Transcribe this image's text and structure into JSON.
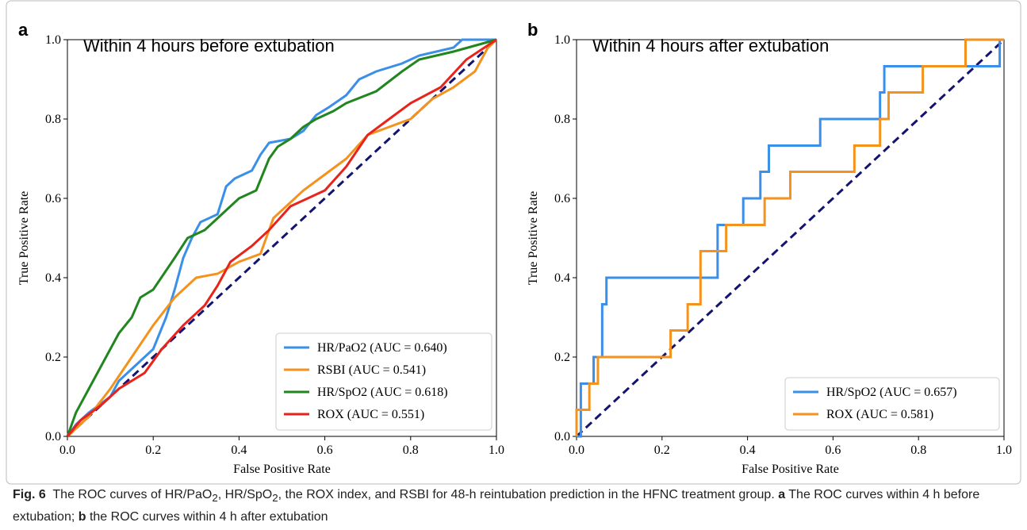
{
  "figure_label": "Fig. 6",
  "caption": [
    "The ROC curves of HR/PaO",
    "2",
    ", HR/SpO",
    "2",
    ", the ROX index, and RSBI for 48-h reintubation prediction in the HFNC treatment group. ",
    "a",
    " The ROC curves within 4 h before extubation; ",
    "b",
    " the ROC curves within 4 h after extubation"
  ],
  "chart_data": [
    {
      "type": "line",
      "panel_label": "a",
      "annotation": "Within 4 hours before extubation",
      "xlabel": "False Positive Rate",
      "ylabel": "True Positive Rate",
      "xlim": [
        0,
        1
      ],
      "ylim": [
        0,
        1
      ],
      "xticks": [
        {
          "value": 0,
          "label": "0.0"
        },
        0.2,
        0.4,
        0.6,
        0.8,
        {
          "value": 1,
          "label": "1.0"
        }
      ],
      "yticks": [
        {
          "value": 0,
          "label": "0.0"
        },
        0.2,
        0.4,
        0.6,
        0.8,
        {
          "value": 1,
          "label": "1.0"
        }
      ],
      "legend": "lower right",
      "series": [
        {
          "name": "HR/PaO2 (AUC = 0.640)",
          "color": "#3a8fe8",
          "x": [
            0,
            0.02,
            0.05,
            0.1,
            0.12,
            0.15,
            0.2,
            0.23,
            0.25,
            0.27,
            0.29,
            0.31,
            0.35,
            0.37,
            0.39,
            0.43,
            0.45,
            0.47,
            0.52,
            0.55,
            0.58,
            0.61,
            0.65,
            0.68,
            0.72,
            0.78,
            0.82,
            0.9,
            0.92,
            1
          ],
          "values": [
            0,
            0.03,
            0.06,
            0.1,
            0.14,
            0.17,
            0.22,
            0.3,
            0.37,
            0.45,
            0.5,
            0.54,
            0.56,
            0.63,
            0.65,
            0.67,
            0.71,
            0.74,
            0.75,
            0.77,
            0.81,
            0.83,
            0.86,
            0.9,
            0.92,
            0.94,
            0.96,
            0.98,
            1,
            1
          ]
        },
        {
          "name": "RSBI (AUC = 0.541)",
          "color": "#f4921e",
          "x": [
            0,
            0.05,
            0.1,
            0.15,
            0.2,
            0.25,
            0.3,
            0.35,
            0.4,
            0.45,
            0.48,
            0.5,
            0.55,
            0.6,
            0.65,
            0.7,
            0.75,
            0.8,
            0.85,
            0.9,
            0.95,
            0.98,
            1
          ],
          "values": [
            0,
            0.05,
            0.12,
            0.2,
            0.28,
            0.35,
            0.4,
            0.41,
            0.44,
            0.46,
            0.55,
            0.57,
            0.62,
            0.66,
            0.7,
            0.76,
            0.78,
            0.8,
            0.85,
            0.88,
            0.92,
            0.98,
            1
          ]
        },
        {
          "name": "HR/SpO2 (AUC = 0.618)",
          "color": "#21861f",
          "x": [
            0,
            0.02,
            0.05,
            0.07,
            0.1,
            0.12,
            0.15,
            0.17,
            0.2,
            0.25,
            0.28,
            0.32,
            0.36,
            0.4,
            0.44,
            0.47,
            0.49,
            0.52,
            0.55,
            0.58,
            0.62,
            0.65,
            0.72,
            0.78,
            0.82,
            0.9,
            1
          ],
          "values": [
            0,
            0.06,
            0.12,
            0.16,
            0.22,
            0.26,
            0.3,
            0.35,
            0.37,
            0.45,
            0.5,
            0.52,
            0.56,
            0.6,
            0.62,
            0.7,
            0.73,
            0.75,
            0.78,
            0.8,
            0.82,
            0.84,
            0.87,
            0.92,
            0.95,
            0.97,
            1
          ]
        },
        {
          "name": "ROX (AUC = 0.551)",
          "color": "#e8231b",
          "x": [
            0,
            0.03,
            0.08,
            0.12,
            0.18,
            0.22,
            0.27,
            0.32,
            0.35,
            0.38,
            0.43,
            0.47,
            0.52,
            0.6,
            0.65,
            0.7,
            0.75,
            0.8,
            0.87,
            0.93,
            1
          ],
          "values": [
            0,
            0.04,
            0.08,
            0.12,
            0.16,
            0.22,
            0.28,
            0.33,
            0.38,
            0.44,
            0.48,
            0.52,
            0.58,
            0.62,
            0.68,
            0.76,
            0.8,
            0.84,
            0.88,
            0.95,
            1
          ]
        }
      ]
    },
    {
      "type": "line",
      "panel_label": "b",
      "annotation": "Within 4 hours after extubation",
      "xlabel": "False Positive Rate",
      "ylabel": "True Positive Rate",
      "xlim": [
        0,
        1
      ],
      "ylim": [
        0,
        1
      ],
      "xticks": [
        {
          "value": 0,
          "label": "0.0"
        },
        0.2,
        0.4,
        0.6,
        0.8,
        {
          "value": 1,
          "label": "1.0"
        }
      ],
      "yticks": [
        {
          "value": 0,
          "label": "0.0"
        },
        0.2,
        0.4,
        0.6,
        0.8,
        {
          "value": 1,
          "label": "1.0"
        }
      ],
      "legend": "lower right",
      "series": [
        {
          "name": "HR/SpO2 (AUC = 0.657)",
          "color": "#3a8fe8",
          "x": [
            0,
            0.01,
            0.01,
            0.04,
            0.04,
            0.06,
            0.06,
            0.07,
            0.07,
            0.33,
            0.33,
            0.39,
            0.39,
            0.43,
            0.43,
            0.45,
            0.45,
            0.57,
            0.57,
            0.71,
            0.71,
            0.72,
            0.72,
            0.99,
            0.99,
            1
          ],
          "values": [
            0,
            0,
            0.133,
            0.133,
            0.2,
            0.2,
            0.333,
            0.333,
            0.4,
            0.4,
            0.533,
            0.533,
            0.6,
            0.6,
            0.667,
            0.667,
            0.733,
            0.733,
            0.8,
            0.8,
            0.867,
            0.867,
            0.933,
            0.933,
            1,
            1
          ]
        },
        {
          "name": "ROX (AUC = 0.581)",
          "color": "#f4921e",
          "x": [
            0,
            0,
            0.03,
            0.03,
            0.05,
            0.05,
            0.22,
            0.22,
            0.26,
            0.26,
            0.29,
            0.29,
            0.35,
            0.35,
            0.44,
            0.44,
            0.5,
            0.5,
            0.65,
            0.65,
            0.71,
            0.71,
            0.73,
            0.73,
            0.81,
            0.81,
            0.91,
            0.91,
            1
          ],
          "values": [
            0,
            0.067,
            0.067,
            0.133,
            0.133,
            0.2,
            0.2,
            0.267,
            0.267,
            0.333,
            0.333,
            0.467,
            0.467,
            0.533,
            0.533,
            0.6,
            0.6,
            0.667,
            0.667,
            0.733,
            0.733,
            0.8,
            0.8,
            0.867,
            0.867,
            0.933,
            0.933,
            1,
            1
          ]
        }
      ]
    }
  ]
}
